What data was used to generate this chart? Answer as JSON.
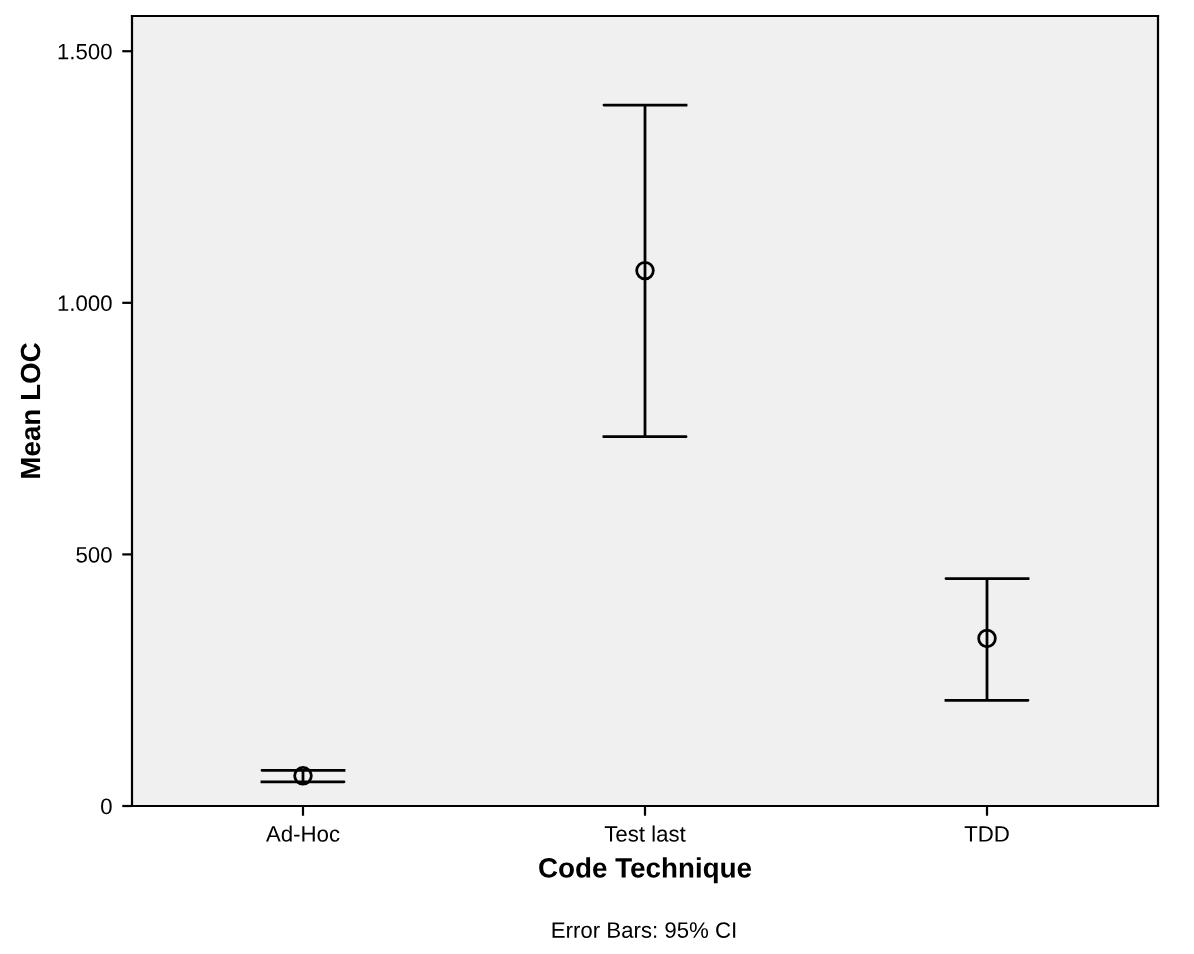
{
  "chart_data": {
    "type": "scatter",
    "xlabel": "Code Technique",
    "ylabel": "Mean LOC",
    "categories": [
      "Ad-Hoc",
      "Test last",
      "TDD"
    ],
    "values": [
      60,
      1064,
      333
    ],
    "errors": [
      [
        48,
        71
      ],
      [
        734,
        1393
      ],
      [
        210,
        452
      ]
    ],
    "color": "#000000",
    "marker": "circle",
    "ylim": [
      0,
      1570
    ],
    "yticks": [
      {
        "value": 0,
        "label": "0"
      },
      {
        "value": 500,
        "label": "500"
      },
      {
        "value": 1000,
        "label": "1.000"
      },
      {
        "value": 1500,
        "label": "1.500"
      }
    ],
    "annotations": [
      "Error Bars: 95% CI"
    ],
    "grid": false,
    "legend": false
  }
}
